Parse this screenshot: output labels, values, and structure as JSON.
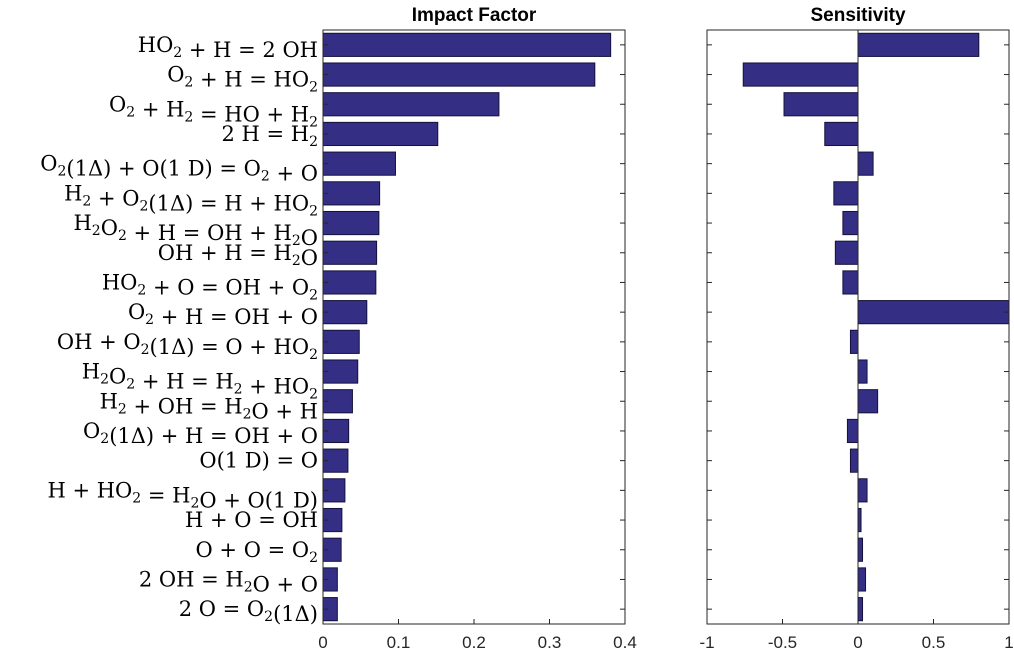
{
  "colors": {
    "bar_fill": "#342F85",
    "bar_edge": "#14123A",
    "axis": "#262626"
  },
  "reactions": [
    {
      "base": "HO",
      "sub": "2",
      "tail": " + H = 2 OH"
    },
    {
      "base": "O",
      "sub": "2",
      "tail": " + H = HO",
      "sub2": "2"
    },
    {
      "base": "O",
      "sub": "2",
      "mid": " + H",
      "sub2": "2",
      "mid2": " = HO",
      "sub3": "2",
      "tail": " + H"
    },
    {
      "base": "2 H = H",
      "sub": "2"
    },
    {
      "base": "O",
      "sub": "2",
      "tail": "(1Δ) + O(1 D) = O",
      "sub2": "2",
      "tail2": " + O"
    },
    {
      "base": "H",
      "sub": "2",
      "mid": " + O",
      "sub2": "2",
      "tail": "(1Δ) = H + HO",
      "sub3": "2"
    },
    {
      "base": "H",
      "sub": "2",
      "mid": "O",
      "sub2": "2",
      "tail": " + H = OH + H",
      "sub3": "2",
      "tail2": "O"
    },
    {
      "base": "OH + H = H",
      "sub": "2",
      "tail": "O"
    },
    {
      "base": "HO",
      "sub": "2",
      "tail": " + O = OH + O",
      "sub2": "2"
    },
    {
      "base": "O",
      "sub": "2",
      "tail": " + H = OH + O"
    },
    {
      "base": "OH + O",
      "sub": "2",
      "tail": "(1Δ) = O + HO",
      "sub2": "2"
    },
    {
      "base": "H",
      "sub": "2",
      "mid": "O",
      "sub2": "2",
      "tail": " + H = H",
      "sub3": "2",
      "tail2": " + HO",
      "sub4": "2"
    },
    {
      "base": "H",
      "sub": "2",
      "tail": " + OH = H",
      "sub2": "2",
      "tail2": "O + H"
    },
    {
      "base": "O",
      "sub": "2",
      "tail": "(1Δ) + H = OH + O"
    },
    {
      "base": "O(1 D) = O"
    },
    {
      "base": "H + HO",
      "sub": "2",
      "tail": " = H",
      "sub2": "2",
      "tail2": "O + O(1 D)"
    },
    {
      "base": "H + O = OH"
    },
    {
      "base": "O + O = O",
      "sub": "2"
    },
    {
      "base": "2 OH = H",
      "sub": "2",
      "tail": "O + O"
    },
    {
      "base": "2 O = O",
      "sub": "2",
      "tail": "(1Δ)"
    }
  ],
  "chart_data": [
    {
      "type": "bar",
      "orientation": "horizontal",
      "title": "Impact Factor",
      "xlim": [
        0,
        0.4
      ],
      "xticks": [
        "0",
        "0.1",
        "0.2",
        "0.3",
        "0.4"
      ],
      "xtick_values": [
        0,
        0.1,
        0.2,
        0.3,
        0.4
      ],
      "categories": [
        "HO2 + H = 2 OH",
        "O2 + H = HO2",
        "O2 + H2 = HO2 + H",
        "2 H = H2",
        "O2(1Δ) + O(1 D) = O2 + O",
        "H2 + O2(1Δ) = H + HO2",
        "H2O2 + H = OH + H2O",
        "OH + H = H2O",
        "HO2 + O = OH + O2",
        "O2 + H = OH + O",
        "OH + O2(1Δ) = O + HO2",
        "H2O2 + H = H2 + HO2",
        "H2 + OH = H2O + H",
        "O2(1Δ) + H = OH + O",
        "O(1 D) = O",
        "H + HO2 = H2O + O(1 D)",
        "H + O = OH",
        "O + O = O2",
        "2 OH = H2O + O",
        "2 O = O2(1Δ)"
      ],
      "values": [
        0.381,
        0.36,
        0.233,
        0.152,
        0.096,
        0.075,
        0.074,
        0.071,
        0.07,
        0.058,
        0.048,
        0.046,
        0.039,
        0.034,
        0.033,
        0.029,
        0.025,
        0.024,
        0.019,
        0.019
      ]
    },
    {
      "type": "bar",
      "orientation": "horizontal",
      "title": "Sensitivity",
      "xlim": [
        -1,
        1
      ],
      "xticks": [
        "-1",
        "-0.5",
        "0",
        "0.5",
        "1"
      ],
      "xtick_values": [
        -1,
        -0.5,
        0,
        0.5,
        1
      ],
      "values": [
        0.8,
        -0.76,
        -0.49,
        -0.22,
        0.1,
        -0.16,
        -0.1,
        -0.15,
        -0.1,
        1.0,
        -0.05,
        0.06,
        0.13,
        -0.07,
        -0.05,
        0.06,
        0.02,
        0.03,
        0.05,
        0.03
      ]
    }
  ]
}
